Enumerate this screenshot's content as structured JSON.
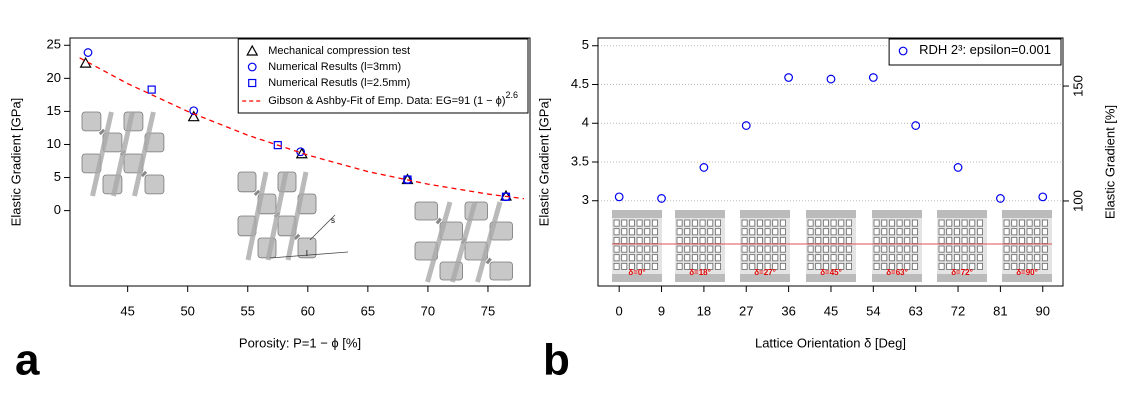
{
  "chart_data": [
    {
      "type": "scatter",
      "panel": "a",
      "xlabel": "Porosity: P=1 − ϕ [%]",
      "ylabel": "Elastic Gradient [GPa]",
      "xlim": [
        40.2,
        78.5
      ],
      "xticks": [
        45,
        50,
        55,
        60,
        65,
        70,
        75
      ],
      "ylim": [
        -11.4,
        26.1
      ],
      "yticks": [
        0,
        5,
        10,
        15,
        20,
        25
      ],
      "grid": false,
      "legend": "top-right",
      "annotations": [
        "s",
        "l"
      ],
      "series": [
        {
          "name": "Mechanical compression test",
          "marker": "triangle",
          "color": "#000000",
          "x": [
            41.5,
            50.5,
            59.5,
            68.3,
            76.5
          ],
          "values": [
            22.3,
            14.2,
            8.6,
            4.7,
            2.2
          ]
        },
        {
          "name": "Numerical Results (l=3mm)",
          "marker": "circle",
          "color": "#0000ee",
          "x": [
            41.7,
            50.5,
            59.4,
            68.3,
            76.5
          ],
          "values": [
            23.9,
            15.1,
            8.9,
            4.7,
            2.1
          ]
        },
        {
          "name": "Numerical Resutls (l=2.5mm)",
          "marker": "square",
          "color": "#0000ee",
          "x": [
            47,
            57.5,
            68.3,
            76.5
          ],
          "values": [
            18.3,
            9.9,
            4.7,
            2.1
          ]
        },
        {
          "name": "Gibson & Ashby-Fit of Emp. Data: EG=91 (1 − ϕ)",
          "name_sup": "2.6",
          "marker": "dashed-line",
          "color": "#ff0000",
          "x": [
            41,
            45,
            50,
            55,
            60,
            65,
            70,
            75,
            78
          ],
          "values": [
            23.1,
            19.2,
            15.0,
            11.4,
            8.4,
            5.9,
            4.0,
            2.5,
            1.8
          ]
        }
      ]
    },
    {
      "type": "scatter",
      "panel": "b",
      "xlabel": "Lattice Orientation δ [Deg]",
      "ylabel": "Elastic Gradient [GPa]",
      "y2label": "Elastic Gradient [%]",
      "x": [
        0,
        9,
        18,
        27,
        36,
        45,
        54,
        63,
        72,
        81,
        90
      ],
      "xlim": [
        -4.5,
        94.3
      ],
      "xticks": [
        0,
        9,
        18,
        27,
        36,
        45,
        54,
        63,
        72,
        81,
        90
      ],
      "ylim": [
        1.9,
        5.1
      ],
      "yticks": [
        3,
        3.5,
        4,
        4.5,
        5
      ],
      "y2lim": [
        63.0,
        170.9
      ],
      "y2ticks": [
        100,
        150
      ],
      "grid": true,
      "legend": "top-right",
      "inset_labels": [
        "δ=0°",
        "δ=18°",
        "δ=27°",
        "δ=45°",
        "δ=63°",
        "δ=72°",
        "δ=90°"
      ],
      "series": [
        {
          "name": "RDH 2³: epsilon=0.001",
          "marker": "circle",
          "color": "#0000ee",
          "values": [
            3.05,
            3.03,
            3.43,
            3.97,
            4.59,
            4.57,
            4.59,
            3.97,
            3.43,
            3.03,
            3.05
          ]
        }
      ]
    }
  ]
}
